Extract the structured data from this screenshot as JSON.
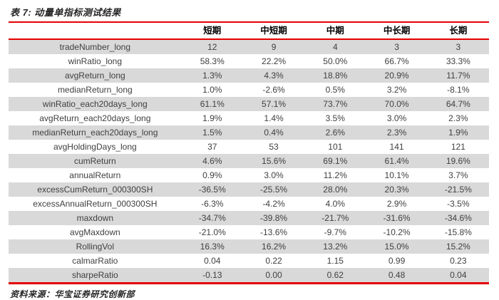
{
  "title": "表 7: 动量单指标测试结果",
  "source": "资料来源：华宝证券研究创新部",
  "colors": {
    "accent_red": "#e60000",
    "band_gray": "#d9d9d9",
    "text": "#404040"
  },
  "chart_data": {
    "type": "table",
    "columns": [
      "",
      "短期",
      "中短期",
      "中期",
      "中长期",
      "长期"
    ],
    "rows": [
      [
        "tradeNumber_long",
        "12",
        "9",
        "4",
        "3",
        "3"
      ],
      [
        "winRatio_long",
        "58.3%",
        "22.2%",
        "50.0%",
        "66.7%",
        "33.3%"
      ],
      [
        "avgReturn_long",
        "1.3%",
        "4.3%",
        "18.8%",
        "20.9%",
        "11.7%"
      ],
      [
        "medianReturn_long",
        "1.0%",
        "-2.6%",
        "0.5%",
        "3.2%",
        "-8.1%"
      ],
      [
        "winRatio_each20days_long",
        "61.1%",
        "57.1%",
        "73.7%",
        "70.0%",
        "64.7%"
      ],
      [
        "avgReturn_each20days_long",
        "1.9%",
        "1.4%",
        "3.5%",
        "3.0%",
        "2.3%"
      ],
      [
        "medianReturn_each20days_long",
        "1.5%",
        "0.4%",
        "2.6%",
        "2.3%",
        "1.9%"
      ],
      [
        "avgHoldingDays_long",
        "37",
        "53",
        "101",
        "141",
        "121"
      ],
      [
        "cumReturn",
        "4.6%",
        "15.6%",
        "69.1%",
        "61.4%",
        "19.6%"
      ],
      [
        "annualReturn",
        "0.9%",
        "3.0%",
        "11.2%",
        "10.1%",
        "3.7%"
      ],
      [
        "excessCumReturn_000300SH",
        "-36.5%",
        "-25.5%",
        "28.0%",
        "20.3%",
        "-21.5%"
      ],
      [
        "excessAnnualReturn_000300SH",
        "-6.3%",
        "-4.2%",
        "4.0%",
        "2.9%",
        "-3.5%"
      ],
      [
        "maxdown",
        "-34.7%",
        "-39.8%",
        "-21.7%",
        "-31.6%",
        "-34.6%"
      ],
      [
        "avgMaxdown",
        "-21.0%",
        "-13.6%",
        "-9.7%",
        "-10.2%",
        "-15.8%"
      ],
      [
        "RollingVol",
        "16.3%",
        "16.2%",
        "13.2%",
        "15.0%",
        "15.2%"
      ],
      [
        "calmarRatio",
        "0.04",
        "0.22",
        "1.15",
        "0.99",
        "0.23"
      ],
      [
        "sharpeRatio",
        "-0.13",
        "0.00",
        "0.62",
        "0.48",
        "0.04"
      ]
    ],
    "layout": {
      "banding": "odd rows gray",
      "rules": "red horizontal rules under title, under header, and at table bottom",
      "alignment": "all cells centered"
    }
  }
}
